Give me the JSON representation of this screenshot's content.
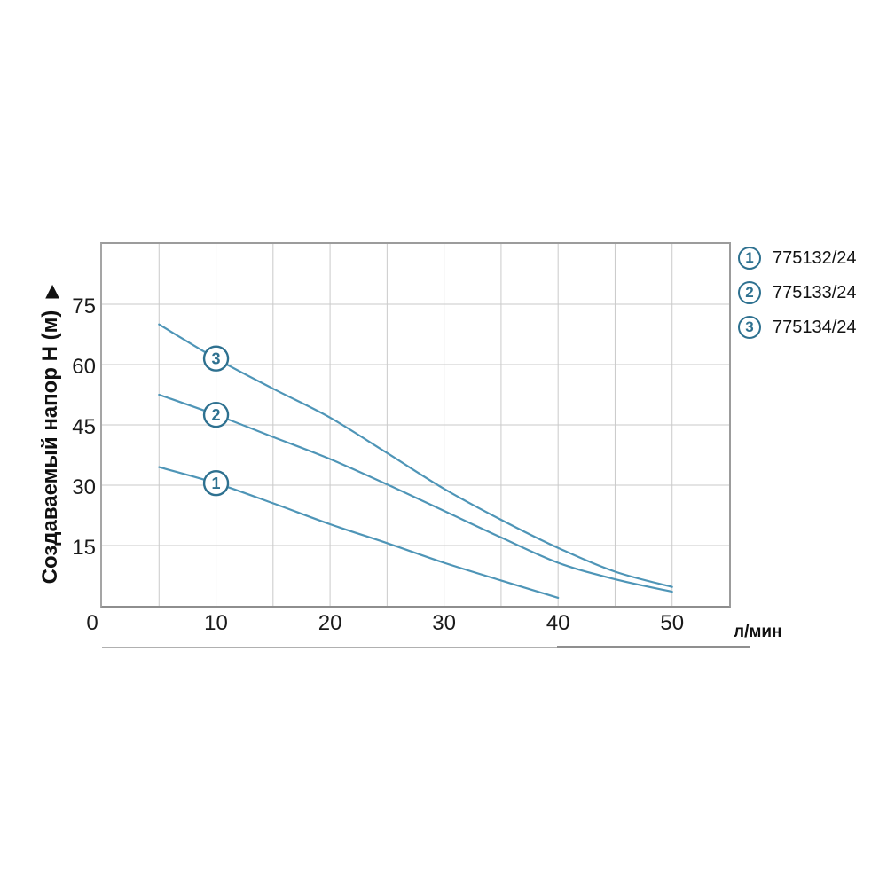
{
  "chart_data": {
    "type": "line",
    "title": "",
    "ylabel": "Создаваемый напор H (м)",
    "ylabel_arrow": "▶",
    "xlabel": "л/мин",
    "xlim": [
      0,
      55
    ],
    "ylim": [
      0,
      90
    ],
    "x_tick_labels": [
      0,
      10,
      20,
      30,
      40,
      50
    ],
    "y_tick_labels": [
      15,
      30,
      45,
      60,
      75
    ],
    "x_grid_step": 5,
    "y_grid_step": 15,
    "grid": true,
    "legend_position": "outside-top-right",
    "marker_at_x": 10,
    "series": [
      {
        "marker_label": "1",
        "name": "775132/24",
        "points": [
          [
            5,
            34.5
          ],
          [
            10,
            30.5
          ],
          [
            15,
            25.5
          ],
          [
            20,
            20.3
          ],
          [
            25,
            15.6
          ],
          [
            30,
            10.7
          ],
          [
            35,
            6.3
          ],
          [
            40,
            2
          ]
        ]
      },
      {
        "marker_label": "2",
        "name": "775133/24",
        "points": [
          [
            5,
            52.5
          ],
          [
            10,
            47.5
          ],
          [
            15,
            42
          ],
          [
            20,
            36.5
          ],
          [
            25,
            30.2
          ],
          [
            30,
            23.6
          ],
          [
            35,
            17
          ],
          [
            40,
            10.7
          ],
          [
            45,
            6.6
          ],
          [
            50,
            3.5
          ]
        ]
      },
      {
        "marker_label": "3",
        "name": "775134/24",
        "points": [
          [
            5,
            70
          ],
          [
            10,
            61.5
          ],
          [
            15,
            54
          ],
          [
            20,
            46.8
          ],
          [
            25,
            38
          ],
          [
            30,
            29.1
          ],
          [
            35,
            21.4
          ],
          [
            40,
            14.4
          ],
          [
            45,
            8.5
          ],
          [
            50,
            4.7
          ]
        ]
      }
    ]
  },
  "legend": {
    "items": [
      {
        "num": "1",
        "label": "775132/24"
      },
      {
        "num": "2",
        "label": "775133/24"
      },
      {
        "num": "3",
        "label": "775134/24"
      }
    ]
  },
  "colors": {
    "curve": "#4e95b7",
    "marker": "#2e7190",
    "grid": "#cacaca",
    "axis": "#9c9c9c",
    "text": "#1a1a1a",
    "background": "#ffffff"
  }
}
